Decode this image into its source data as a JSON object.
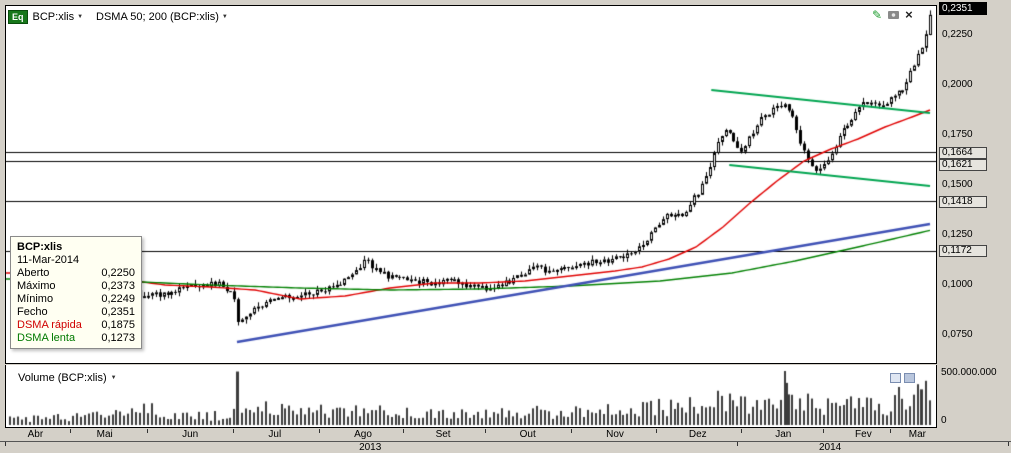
{
  "toolbar": {
    "instrument_badge": "Eq",
    "symbol": "BCP:xlis",
    "indicator_label": "DSMA 50; 200 (BCP:xlis)"
  },
  "volume_header": {
    "label": "Volume (BCP:xlis)"
  },
  "tooltip": {
    "title": "BCP:xlis",
    "date": "11-Mar-2014",
    "rows": [
      {
        "label": "Aberto",
        "value": "0,2250",
        "color": "#000000"
      },
      {
        "label": "Máximo",
        "value": "0,2373",
        "color": "#000000"
      },
      {
        "label": "Mínimo",
        "value": "0,2249",
        "color": "#000000"
      },
      {
        "label": "Fecho",
        "value": "0,2351",
        "color": "#000000"
      },
      {
        "label": "DSMA rápida",
        "value": "0,1875",
        "color": "#d00000"
      },
      {
        "label": "DSMA lenta",
        "value": "0,1273",
        "color": "#007a00"
      }
    ]
  },
  "price_axis": {
    "last_price_label": "0,2351",
    "ticks": [
      {
        "label": "0,2250",
        "value": 0.225
      },
      {
        "label": "0,2000",
        "value": 0.2
      },
      {
        "label": "0,1750",
        "value": 0.175
      },
      {
        "label": "0,1500",
        "value": 0.15
      },
      {
        "label": "0,1250",
        "value": 0.125
      },
      {
        "label": "0,1000",
        "value": 0.1
      },
      {
        "label": "0,0750",
        "value": 0.075
      }
    ],
    "level_labels": [
      {
        "label": "0,1664",
        "value": 0.1664
      },
      {
        "label": "0,1621",
        "value": 0.1621
      },
      {
        "label": "0,1418",
        "value": 0.1418
      },
      {
        "label": "0,1172",
        "value": 0.1172
      }
    ]
  },
  "volume_axis": {
    "max_label": "500.000.000",
    "min_label": "0"
  },
  "x_axis": {
    "months": [
      {
        "label": "Abr",
        "t": 0.006
      },
      {
        "label": "Mai",
        "t": 0.083
      },
      {
        "label": "Jun",
        "t": 0.178
      },
      {
        "label": "Jul",
        "t": 0.272
      },
      {
        "label": "Ago",
        "t": 0.37
      },
      {
        "label": "Set",
        "t": 0.459
      },
      {
        "label": "Out",
        "t": 0.553
      },
      {
        "label": "Nov",
        "t": 0.65
      },
      {
        "label": "Dez",
        "t": 0.742
      },
      {
        "label": "Jan",
        "t": 0.837
      },
      {
        "label": "Fev",
        "t": 0.926
      },
      {
        "label": "Mar",
        "t": 0.986
      }
    ],
    "years": [
      {
        "label": "2013",
        "t": 0.378
      },
      {
        "label": "2014",
        "t": 0.889
      }
    ],
    "year_boundary_t": 0.786
  },
  "chart_data": {
    "type": "candlestick",
    "title": "BCP:xlis",
    "timeframe": "daily, Abr 2013 - Mar 2014",
    "y_axis": {
      "tick_values": [
        0.225,
        0.2,
        0.175,
        0.15,
        0.125,
        0.1,
        0.075
      ],
      "tick_labels": [
        "0,2250",
        "0,2000",
        "0,1750",
        "0,1500",
        "0,1250",
        "0,1000",
        "0,0750"
      ],
      "range": [
        0.0615,
        0.2395
      ],
      "grid": false
    },
    "last_candle": {
      "date": "11-Mar-2014",
      "open": 0.225,
      "high": 0.2373,
      "low": 0.2249,
      "close": 0.2351
    },
    "close_anchors": [
      [
        0.0,
        0.107
      ],
      [
        0.02,
        0.1075
      ],
      [
        0.04,
        0.108
      ],
      [
        0.06,
        0.106
      ],
      [
        0.08,
        0.104
      ],
      [
        0.095,
        0.103
      ],
      [
        0.11,
        0.0975
      ],
      [
        0.13,
        0.0945
      ],
      [
        0.15,
        0.0955
      ],
      [
        0.17,
        0.099
      ],
      [
        0.19,
        0.1
      ],
      [
        0.208,
        0.101
      ],
      [
        0.218,
        0.0985
      ],
      [
        0.226,
        0.096
      ],
      [
        0.23,
        0.08
      ],
      [
        0.238,
        0.084
      ],
      [
        0.252,
        0.0885
      ],
      [
        0.268,
        0.092
      ],
      [
        0.285,
        0.094
      ],
      [
        0.3,
        0.095
      ],
      [
        0.32,
        0.097
      ],
      [
        0.34,
        0.099
      ],
      [
        0.352,
        0.104
      ],
      [
        0.365,
        0.109
      ],
      [
        0.373,
        0.113
      ],
      [
        0.383,
        0.108
      ],
      [
        0.4,
        0.104
      ],
      [
        0.43,
        0.102
      ],
      [
        0.45,
        0.101
      ],
      [
        0.47,
        0.102
      ],
      [
        0.49,
        0.099
      ],
      [
        0.51,
        0.0985
      ],
      [
        0.53,
        0.101
      ],
      [
        0.545,
        0.105
      ],
      [
        0.56,
        0.1095
      ],
      [
        0.575,
        0.107
      ],
      [
        0.59,
        0.108
      ],
      [
        0.605,
        0.11
      ],
      [
        0.62,
        0.111
      ],
      [
        0.635,
        0.112
      ],
      [
        0.65,
        0.113
      ],
      [
        0.665,
        0.115
      ],
      [
        0.68,
        0.12
      ],
      [
        0.695,
        0.129
      ],
      [
        0.705,
        0.134
      ],
      [
        0.715,
        0.136
      ],
      [
        0.725,
        0.133
      ],
      [
        0.735,
        0.142
      ],
      [
        0.745,
        0.148
      ],
      [
        0.752,
        0.156
      ],
      [
        0.76,
        0.166
      ],
      [
        0.768,
        0.175
      ],
      [
        0.775,
        0.18
      ],
      [
        0.782,
        0.172
      ],
      [
        0.788,
        0.165
      ],
      [
        0.795,
        0.17
      ],
      [
        0.802,
        0.176
      ],
      [
        0.81,
        0.182
      ],
      [
        0.818,
        0.186
      ],
      [
        0.828,
        0.188
      ],
      [
        0.838,
        0.1895
      ],
      [
        0.845,
        0.186
      ],
      [
        0.852,
        0.178
      ],
      [
        0.858,
        0.168
      ],
      [
        0.865,
        0.162
      ],
      [
        0.872,
        0.158
      ],
      [
        0.88,
        0.16
      ],
      [
        0.888,
        0.164
      ],
      [
        0.895,
        0.17
      ],
      [
        0.902,
        0.176
      ],
      [
        0.91,
        0.182
      ],
      [
        0.918,
        0.187
      ],
      [
        0.925,
        0.19
      ],
      [
        0.932,
        0.192
      ],
      [
        0.94,
        0.1905
      ],
      [
        0.948,
        0.189
      ],
      [
        0.955,
        0.192
      ],
      [
        0.962,
        0.195
      ],
      [
        0.97,
        0.199
      ],
      [
        0.978,
        0.207
      ],
      [
        0.986,
        0.214
      ],
      [
        0.993,
        0.22
      ],
      [
        1.0,
        0.2351
      ]
    ],
    "indicators": [
      {
        "name": "DSMA rápida (50)",
        "color": "#e00000",
        "last_value": 0.1875,
        "anchors": [
          [
            0.0,
            0.106
          ],
          [
            0.05,
            0.105
          ],
          [
            0.1,
            0.103
          ],
          [
            0.15,
            0.1
          ],
          [
            0.2,
            0.099
          ],
          [
            0.25,
            0.0975
          ],
          [
            0.3,
            0.093
          ],
          [
            0.35,
            0.0945
          ],
          [
            0.4,
            0.0985
          ],
          [
            0.45,
            0.101
          ],
          [
            0.5,
            0.101
          ],
          [
            0.55,
            0.102
          ],
          [
            0.6,
            0.1045
          ],
          [
            0.65,
            0.107
          ],
          [
            0.68,
            0.109
          ],
          [
            0.71,
            0.113
          ],
          [
            0.74,
            0.119
          ],
          [
            0.77,
            0.129
          ],
          [
            0.8,
            0.141
          ],
          [
            0.83,
            0.152
          ],
          [
            0.86,
            0.162
          ],
          [
            0.89,
            0.168
          ],
          [
            0.92,
            0.173
          ],
          [
            0.95,
            0.179
          ],
          [
            0.98,
            0.184
          ],
          [
            1.0,
            0.1875
          ]
        ]
      },
      {
        "name": "DSMA lenta (200)",
        "color": "#008000",
        "last_value": 0.1273,
        "anchors": [
          [
            0.0,
            0.103
          ],
          [
            0.1,
            0.102
          ],
          [
            0.2,
            0.1
          ],
          [
            0.3,
            0.0985
          ],
          [
            0.4,
            0.0975
          ],
          [
            0.5,
            0.098
          ],
          [
            0.6,
            0.0995
          ],
          [
            0.7,
            0.102
          ],
          [
            0.78,
            0.106
          ],
          [
            0.85,
            0.112
          ],
          [
            0.92,
            0.119
          ],
          [
            1.0,
            0.1273
          ]
        ]
      }
    ],
    "trendlines": [
      {
        "name": "uptrend-support",
        "color": "#3f51b5",
        "width": 2.5,
        "from": [
          0.23,
          0.0715
        ],
        "to": [
          1.0,
          0.1305
        ]
      },
      {
        "name": "downtrend-resistance-upper",
        "color": "#00a550",
        "width": 2,
        "from": [
          0.757,
          0.1975
        ],
        "to": [
          1.0,
          0.186
        ]
      },
      {
        "name": "downtrend-resistance-lower",
        "color": "#00a550",
        "width": 2,
        "from": [
          0.777,
          0.16
        ],
        "to": [
          1.0,
          0.1495
        ]
      }
    ],
    "horizontal_levels": [
      {
        "value": 0.1664,
        "label": "0,1664"
      },
      {
        "value": 0.1621,
        "label": "0,1621"
      },
      {
        "value": 0.1418,
        "label": "0,1418"
      },
      {
        "value": 0.1172,
        "label": "0,1172"
      }
    ],
    "volume": {
      "max_value": 500000000,
      "axis_labels": [
        "500.000.000",
        "0"
      ],
      "anchors_millions": [
        [
          0.0,
          60
        ],
        [
          0.04,
          75
        ],
        [
          0.08,
          85
        ],
        [
          0.11,
          130
        ],
        [
          0.13,
          150
        ],
        [
          0.16,
          90
        ],
        [
          0.2,
          85
        ],
        [
          0.221,
          95
        ],
        [
          0.226,
          130
        ],
        [
          0.23,
          500
        ],
        [
          0.236,
          230
        ],
        [
          0.25,
          160
        ],
        [
          0.3,
          110
        ],
        [
          0.34,
          140
        ],
        [
          0.38,
          160
        ],
        [
          0.42,
          110
        ],
        [
          0.46,
          95
        ],
        [
          0.5,
          105
        ],
        [
          0.54,
          130
        ],
        [
          0.58,
          115
        ],
        [
          0.62,
          120
        ],
        [
          0.66,
          140
        ],
        [
          0.69,
          170
        ],
        [
          0.72,
          160
        ],
        [
          0.75,
          200
        ],
        [
          0.77,
          230
        ],
        [
          0.79,
          180
        ],
        [
          0.81,
          190
        ],
        [
          0.83,
          210
        ],
        [
          0.84,
          390
        ],
        [
          0.848,
          210
        ],
        [
          0.86,
          230
        ],
        [
          0.88,
          170
        ],
        [
          0.9,
          210
        ],
        [
          0.92,
          190
        ],
        [
          0.94,
          170
        ],
        [
          0.96,
          210
        ],
        [
          0.975,
          290
        ],
        [
          0.99,
          330
        ],
        [
          1.0,
          270
        ]
      ],
      "spikes_millions": [
        [
          0.23,
          495
        ],
        [
          0.84,
          390
        ],
        [
          0.99,
          330
        ]
      ]
    },
    "render_hints": {
      "candle_count": 230,
      "close_noise": 0.003,
      "wick_noise": 0.0022,
      "bull_fill": "#ffffff",
      "bear_fill": "#000000",
      "candle_stroke": "#000000",
      "volume_color": "#3c3c3c"
    }
  }
}
